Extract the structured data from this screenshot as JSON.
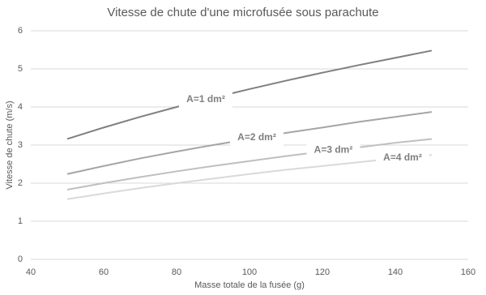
{
  "chart_data": {
    "type": "line",
    "title": "Vitesse de chute d'une microfusée sous parachute",
    "x_label": "Masse totale de la fusée (g)",
    "y_label": "Vitesse de chute (m/s)",
    "x": [
      50,
      60,
      70,
      80,
      90,
      100,
      110,
      120,
      130,
      140,
      150
    ],
    "series": [
      {
        "name": "A=1 dm²",
        "color": "#7f7f7f",
        "values": [
          3.16,
          3.46,
          3.74,
          4.0,
          4.24,
          4.47,
          4.69,
          4.9,
          5.1,
          5.29,
          5.48
        ]
      },
      {
        "name": "A=2 dm²",
        "color": "#a5a5a5",
        "values": [
          2.24,
          2.45,
          2.65,
          2.83,
          3.0,
          3.16,
          3.32,
          3.46,
          3.61,
          3.74,
          3.87
        ]
      },
      {
        "name": "A=3 dm²",
        "color": "#bfbfbf",
        "values": [
          1.83,
          2.0,
          2.16,
          2.31,
          2.45,
          2.58,
          2.71,
          2.83,
          2.94,
          3.06,
          3.16
        ]
      },
      {
        "name": "A=4 dm²",
        "color": "#d9d9d9",
        "values": [
          1.58,
          1.73,
          1.87,
          2.0,
          2.12,
          2.24,
          2.35,
          2.45,
          2.55,
          2.65,
          2.74
        ]
      }
    ],
    "xlim": [
      40,
      160
    ],
    "xticks": [
      40,
      60,
      80,
      100,
      120,
      140,
      160
    ],
    "ylim": [
      0,
      6
    ],
    "yticks": [
      0,
      1,
      2,
      3,
      4,
      5,
      6
    ],
    "grid": true
  }
}
